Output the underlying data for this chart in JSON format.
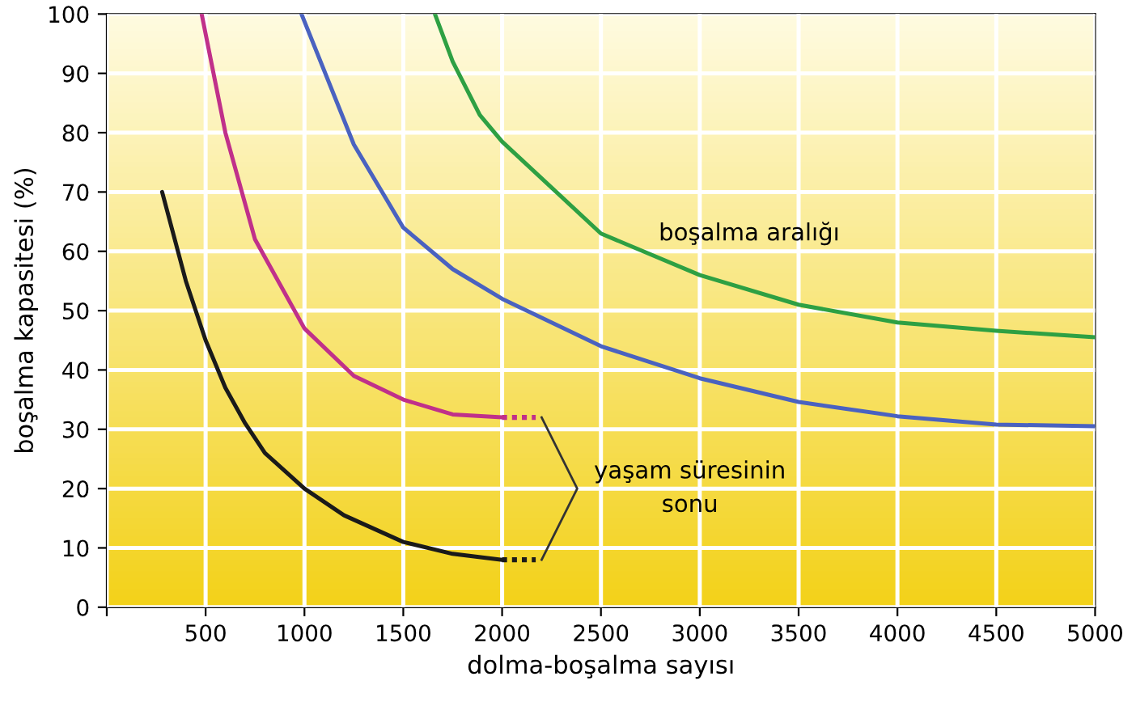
{
  "chart_data": {
    "type": "line",
    "xlabel": "dolma-boşalma sayısı",
    "ylabel": "boşalma kapasitesi (%)",
    "xlim": [
      0,
      5000
    ],
    "ylim": [
      0,
      100
    ],
    "xticks": [
      {
        "value": 0,
        "label": null
      },
      500,
      1000,
      1500,
      2000,
      2500,
      3000,
      3500,
      4000,
      4500,
      5000
    ],
    "yticks": [
      0,
      10,
      20,
      30,
      40,
      50,
      60,
      70,
      80,
      90,
      100
    ],
    "grid": true,
    "marker": "none",
    "annotations": [
      "boşalma aralığı",
      "yaşam süresinin\nsonu"
    ],
    "series": [
      {
        "color": "#1a1a1a",
        "line_style": "solid",
        "x": [
          280,
          400,
          500,
          600,
          700,
          800,
          1000,
          1200,
          1500,
          1750,
          2000
        ],
        "values": [
          70,
          55,
          45,
          37,
          31,
          26,
          20,
          15.5,
          11,
          9,
          8
        ]
      },
      {
        "color": "#1a1a1a",
        "line_style": "dotted",
        "x": [
          2000,
          2170
        ],
        "values": [
          8,
          8
        ]
      },
      {
        "color": "#c0308a",
        "line_style": "solid",
        "x": [
          480,
          600,
          750,
          1000,
          1250,
          1500,
          1750,
          2000
        ],
        "values": [
          100,
          80,
          62,
          47,
          39,
          35,
          32.5,
          32
        ]
      },
      {
        "color": "#c0308a",
        "line_style": "dotted",
        "x": [
          2000,
          2170
        ],
        "values": [
          32,
          32
        ]
      },
      {
        "color": "#4a62c0",
        "line_style": "solid",
        "x": [
          985,
          1250,
          1500,
          1750,
          2000,
          2500,
          3000,
          3500,
          4000,
          4500,
          5000
        ],
        "values": [
          100,
          78,
          64,
          57,
          52,
          44,
          38.6,
          34.6,
          32.2,
          30.8,
          30.5
        ]
      },
      {
        "color": "#2ea043",
        "line_style": "solid",
        "x": [
          1660,
          1750,
          1887,
          2000,
          2500,
          3000,
          3500,
          4000,
          4500,
          5000
        ],
        "values": [
          100,
          92,
          83,
          78.5,
          63,
          56,
          51,
          48,
          46.6,
          45.5
        ]
      }
    ]
  }
}
